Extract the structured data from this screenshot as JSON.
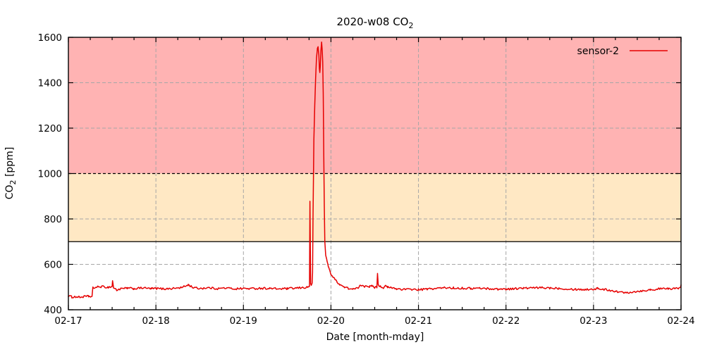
{
  "title": {
    "prefix": "2020-w08 CO",
    "sub": "2"
  },
  "axes": {
    "x_label": "Date [month-mday]",
    "y_label_prefix": "CO",
    "y_label_sub": "2",
    "y_label_suffix": " [ppm]",
    "x_tick_labels": [
      "02-17",
      "02-18",
      "02-19",
      "02-20",
      "02-21",
      "02-22",
      "02-23",
      "02-24"
    ],
    "y_tick_labels": [
      "400",
      "600",
      "800",
      "1000",
      "1200",
      "1400",
      "1600"
    ],
    "y_tick_values": [
      400,
      600,
      800,
      1000,
      1200,
      1400,
      1600
    ],
    "minor_x_per_day": 4
  },
  "legend": {
    "label": "sensor-2",
    "color": "#e60000"
  },
  "zones": [
    {
      "name": "alert-zone",
      "from": 1000,
      "to": 1600,
      "color": "#ffb3b3"
    },
    {
      "name": "warn-zone",
      "from": 700,
      "to": 1000,
      "color": "#ffe8c4"
    }
  ],
  "zone_lines": [
    {
      "y": 1000,
      "style": "dashed",
      "color": "#000000"
    },
    {
      "y": 700,
      "style": "solid",
      "color": "#000000"
    }
  ],
  "grid": {
    "color": "#a6a6a6",
    "dash": "5,3"
  },
  "chart_data": {
    "type": "line",
    "title": "2020-w08 CO2",
    "xlabel": "Date [month-mday]",
    "ylabel": "CO2 [ppm]",
    "x_unit": "days since 2020-02-17",
    "xlim_days": [
      0,
      7
    ],
    "ylim": [
      400,
      1600
    ],
    "grid": "on",
    "legend_position": "top-right-inside",
    "noise_ppm": 4.5,
    "series": [
      {
        "name": "sensor-2",
        "color": "#e60000",
        "points": [
          [
            0.0,
            462
          ],
          [
            0.04,
            456
          ],
          [
            0.08,
            457
          ],
          [
            0.13,
            455
          ],
          [
            0.18,
            458
          ],
          [
            0.23,
            459
          ],
          [
            0.27,
            458
          ],
          [
            0.28,
            496
          ],
          [
            0.33,
            500
          ],
          [
            0.38,
            502
          ],
          [
            0.45,
            499
          ],
          [
            0.5,
            502
          ],
          [
            0.505,
            530
          ],
          [
            0.515,
            498
          ],
          [
            0.55,
            487
          ],
          [
            0.6,
            492
          ],
          [
            0.67,
            495
          ],
          [
            0.75,
            493
          ],
          [
            0.85,
            496
          ],
          [
            0.95,
            493
          ],
          [
            1.0,
            494
          ],
          [
            1.1,
            492
          ],
          [
            1.2,
            494
          ],
          [
            1.3,
            498
          ],
          [
            1.37,
            510
          ],
          [
            1.43,
            497
          ],
          [
            1.5,
            494
          ],
          [
            1.6,
            497
          ],
          [
            1.7,
            493
          ],
          [
            1.8,
            496
          ],
          [
            1.9,
            492
          ],
          [
            2.0,
            494
          ],
          [
            2.1,
            493
          ],
          [
            2.2,
            495
          ],
          [
            2.3,
            494
          ],
          [
            2.4,
            492
          ],
          [
            2.5,
            493
          ],
          [
            2.6,
            495
          ],
          [
            2.7,
            498
          ],
          [
            2.74,
            500
          ],
          [
            2.755,
            505
          ],
          [
            2.76,
            878
          ],
          [
            2.768,
            515
          ],
          [
            2.775,
            504
          ],
          [
            2.785,
            520
          ],
          [
            2.79,
            560
          ],
          [
            2.795,
            800
          ],
          [
            2.805,
            1150
          ],
          [
            2.815,
            1300
          ],
          [
            2.825,
            1420
          ],
          [
            2.835,
            1510
          ],
          [
            2.845,
            1550
          ],
          [
            2.853,
            1557
          ],
          [
            2.862,
            1520
          ],
          [
            2.868,
            1462
          ],
          [
            2.873,
            1445
          ],
          [
            2.878,
            1470
          ],
          [
            2.885,
            1540
          ],
          [
            2.893,
            1578
          ],
          [
            2.9,
            1545
          ],
          [
            2.906,
            1490
          ],
          [
            2.912,
            1350
          ],
          [
            2.918,
            1080
          ],
          [
            2.924,
            860
          ],
          [
            2.93,
            700
          ],
          [
            2.94,
            640
          ],
          [
            2.955,
            615
          ],
          [
            2.97,
            592
          ],
          [
            3.0,
            558
          ],
          [
            3.03,
            540
          ],
          [
            3.06,
            528
          ],
          [
            3.1,
            512
          ],
          [
            3.15,
            500
          ],
          [
            3.2,
            494
          ],
          [
            3.25,
            490
          ],
          [
            3.3,
            494
          ],
          [
            3.33,
            504
          ],
          [
            3.36,
            509
          ],
          [
            3.385,
            503
          ],
          [
            3.41,
            507
          ],
          [
            3.44,
            502
          ],
          [
            3.47,
            504
          ],
          [
            3.5,
            499
          ],
          [
            3.525,
            500
          ],
          [
            3.532,
            560
          ],
          [
            3.54,
            512
          ],
          [
            3.56,
            504
          ],
          [
            3.6,
            497
          ],
          [
            3.625,
            504
          ],
          [
            3.65,
            499
          ],
          [
            3.7,
            496
          ],
          [
            3.75,
            492
          ],
          [
            3.8,
            491
          ],
          [
            3.85,
            489
          ],
          [
            3.92,
            490
          ],
          [
            4.0,
            488
          ],
          [
            4.1,
            491
          ],
          [
            4.2,
            494
          ],
          [
            4.3,
            497
          ],
          [
            4.4,
            496
          ],
          [
            4.5,
            495
          ],
          [
            4.6,
            494
          ],
          [
            4.7,
            495
          ],
          [
            4.8,
            493
          ],
          [
            4.9,
            491
          ],
          [
            5.0,
            491
          ],
          [
            5.1,
            493
          ],
          [
            5.2,
            495
          ],
          [
            5.3,
            496
          ],
          [
            5.4,
            497
          ],
          [
            5.5,
            496
          ],
          [
            5.6,
            495
          ],
          [
            5.7,
            492
          ],
          [
            5.8,
            490
          ],
          [
            5.9,
            489
          ],
          [
            6.0,
            491
          ],
          [
            6.05,
            494
          ],
          [
            6.1,
            490
          ],
          [
            6.17,
            487
          ],
          [
            6.25,
            482
          ],
          [
            6.3,
            477
          ],
          [
            6.37,
            476
          ],
          [
            6.45,
            479
          ],
          [
            6.55,
            483
          ],
          [
            6.65,
            488
          ],
          [
            6.75,
            492
          ],
          [
            6.85,
            493
          ],
          [
            6.93,
            492
          ],
          [
            6.97,
            496
          ],
          [
            7.0,
            506
          ]
        ]
      }
    ]
  }
}
